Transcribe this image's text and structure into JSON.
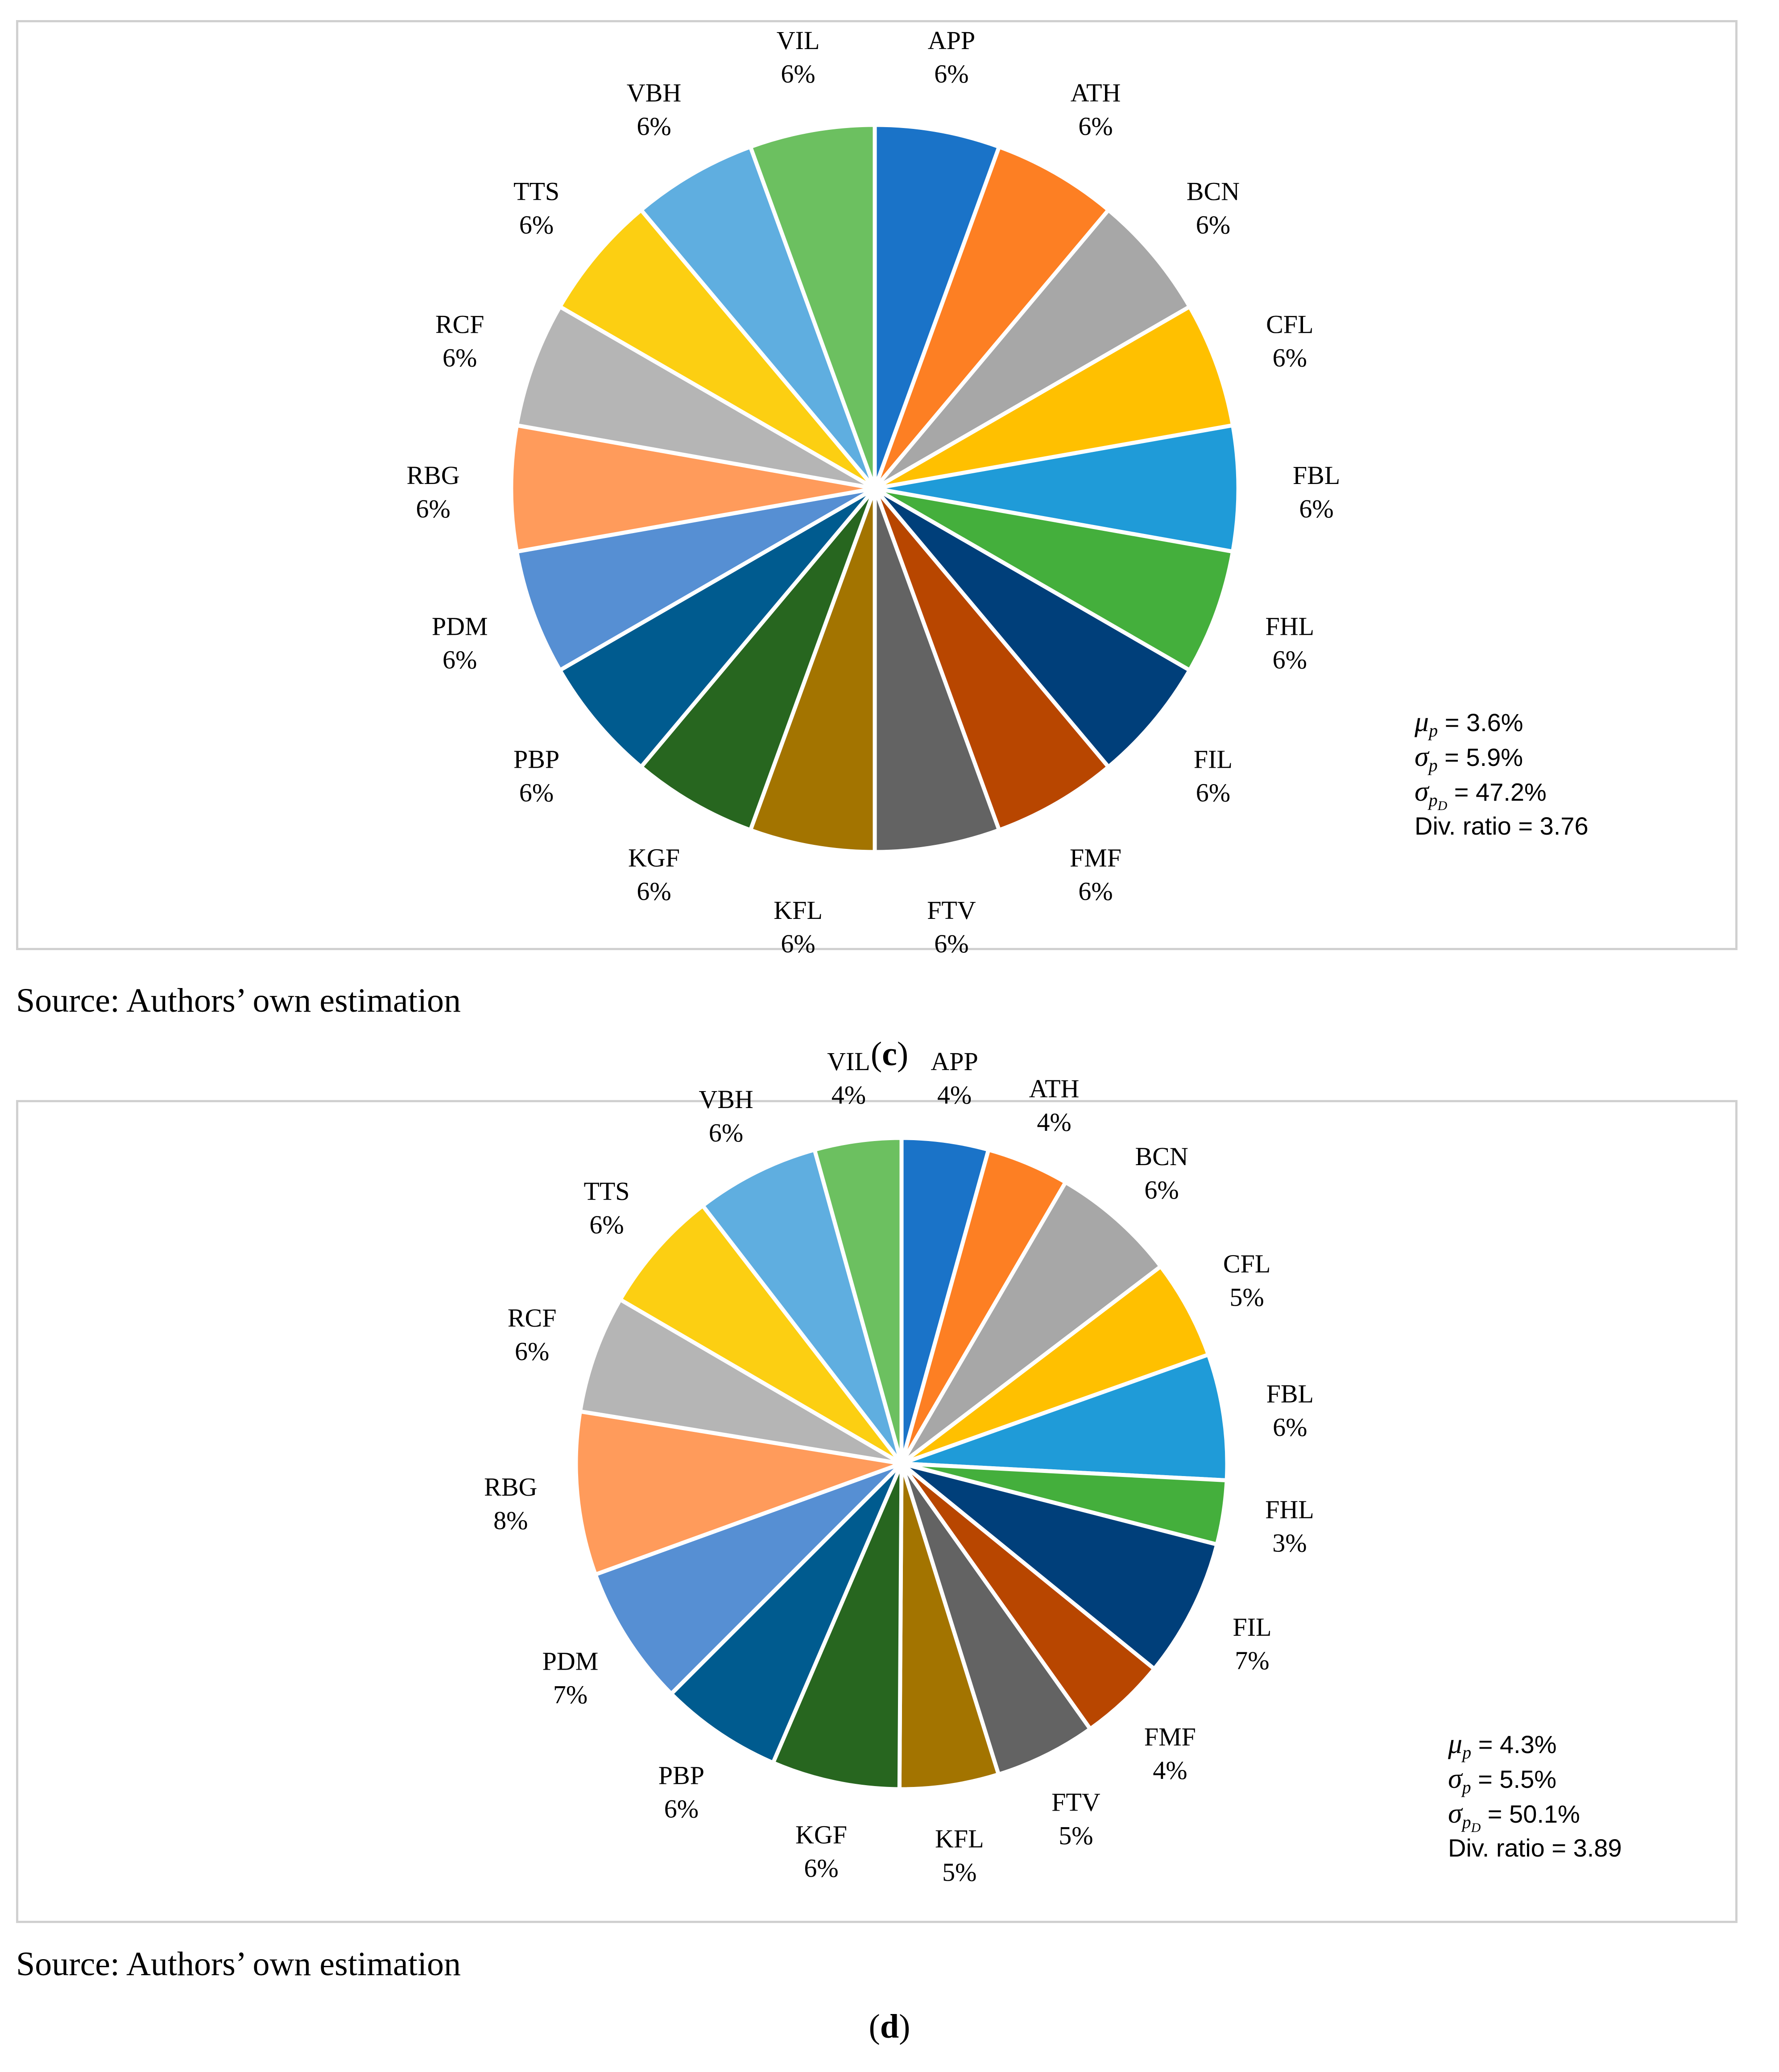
{
  "chart_data": [
    {
      "type": "pie",
      "panel_id": "c",
      "caption_letter": "c",
      "title": "",
      "start_angle_deg": 90,
      "direction": "clockwise",
      "labels": [
        "APP",
        "ATH",
        "BCN",
        "CFL",
        "FBL",
        "FHL",
        "FIL",
        "FMF",
        "FTV",
        "KFL",
        "KGF",
        "PBP",
        "PDM",
        "RBG",
        "RCF",
        "TTS",
        "VBH",
        "VIL"
      ],
      "values": [
        5.56,
        5.56,
        5.56,
        5.56,
        5.56,
        5.56,
        5.56,
        5.56,
        5.56,
        5.56,
        5.56,
        5.56,
        5.56,
        5.56,
        5.56,
        5.56,
        5.56,
        5.56
      ],
      "percent_labels": [
        "6%",
        "6%",
        "6%",
        "6%",
        "6%",
        "6%",
        "6%",
        "6%",
        "6%",
        "6%",
        "6%",
        "6%",
        "6%",
        "6%",
        "6%",
        "6%",
        "6%",
        "6%"
      ],
      "colors": [
        "#1a73c8",
        "#fd7f23",
        "#a7a7a7",
        "#ffc000",
        "#1f9bd8",
        "#44af3c",
        "#003f7a",
        "#b84600",
        "#636363",
        "#a37400",
        "#27661f",
        "#005b8f",
        "#568fd3",
        "#ff9b5b",
        "#b5b5b5",
        "#fccf12",
        "#5faee0",
        "#6cc060"
      ],
      "stats": {
        "mu_sym": "μ",
        "mu_sub": "p",
        "mu_value": "= 3.6%",
        "sigma_sym": "σ",
        "sigma_sub": "p",
        "sigma_value": "= 5.9%",
        "sigmad_sym": "σ",
        "sigmad_sub": "p",
        "sigmad_subsub": "D",
        "sigmad_value": "= 47.2%",
        "div_text": "Div. ratio = 3.76"
      },
      "source": "Source: Authors’ own estimation"
    },
    {
      "type": "pie",
      "panel_id": "d",
      "caption_letter": "d",
      "title": "",
      "start_angle_deg": 90,
      "direction": "clockwise",
      "labels": [
        "APP",
        "ATH",
        "BCN",
        "CFL",
        "FBL",
        "FHL",
        "FIL",
        "FMF",
        "FTV",
        "KFL",
        "KGF",
        "PBP",
        "PDM",
        "RBG",
        "RCF",
        "TTS",
        "VBH",
        "VIL"
      ],
      "values": [
        4.2,
        4.0,
        6.1,
        4.8,
        6.1,
        3.1,
        6.7,
        4.2,
        4.9,
        4.8,
        6.2,
        5.9,
        6.8,
        7.9,
        5.7,
        6.0,
        6.0,
        4.2
      ],
      "percent_labels": [
        "4%",
        "4%",
        "6%",
        "5%",
        "6%",
        "3%",
        "7%",
        "4%",
        "5%",
        "5%",
        "6%",
        "6%",
        "7%",
        "8%",
        "6%",
        "6%",
        "6%",
        "4%"
      ],
      "colors": [
        "#1a73c8",
        "#fd7f23",
        "#a7a7a7",
        "#ffc000",
        "#1f9bd8",
        "#44af3c",
        "#003f7a",
        "#b84600",
        "#636363",
        "#a37400",
        "#27661f",
        "#005b8f",
        "#568fd3",
        "#ff9b5b",
        "#b5b5b5",
        "#fccf12",
        "#5faee0",
        "#6cc060"
      ],
      "stats": {
        "mu_sym": "μ",
        "mu_sub": "p",
        "mu_value": "= 4.3%",
        "sigma_sym": "σ",
        "sigma_sub": "p",
        "sigma_value": "= 5.5%",
        "sigmad_sym": "σ",
        "sigmad_sub": "p",
        "sigmad_subsub": "D",
        "sigmad_value": "= 50.1%",
        "div_text": "Div. ratio = 3.89"
      },
      "source": "Source: Authors’ own estimation"
    }
  ]
}
